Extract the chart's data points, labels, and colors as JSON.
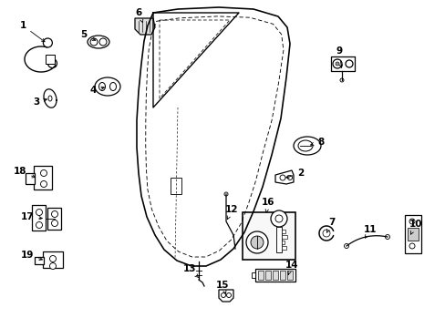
{
  "background_color": "#ffffff",
  "line_color": "#000000",
  "fill_color": "#ffffff",
  "label_fontsize": 7.5,
  "lw": 0.9,
  "fig_width": 4.89,
  "fig_height": 3.6,
  "dpi": 100
}
